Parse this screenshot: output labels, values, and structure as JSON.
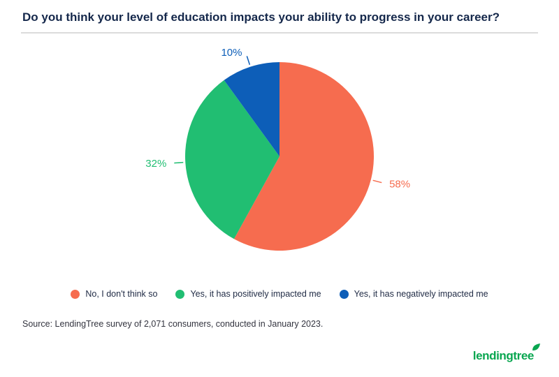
{
  "title": "Do you think your level of education impacts your ability to progress in your career?",
  "source": "Source: LendingTree survey of 2,071 consumers, conducted in January 2023.",
  "logo": {
    "text": "lendingtree"
  },
  "chart_data": {
    "type": "pie",
    "title": "Do you think your level of education impacts your ability to progress in your career?",
    "labels": [
      "No, I don't think so",
      "Yes, it has positively impacted me",
      "Yes, it has negatively impacted me"
    ],
    "values": [
      58,
      32,
      10
    ],
    "value_labels": [
      "58%",
      "32%",
      "10%"
    ],
    "colors": [
      "#F66C4F",
      "#21BE72",
      "#0D5EB8"
    ],
    "start_angle_deg": 0,
    "direction": "clockwise",
    "legend_position": "bottom",
    "accent_colors": {
      "title_navy": "#15284B",
      "brand_green": "#09A650"
    }
  }
}
